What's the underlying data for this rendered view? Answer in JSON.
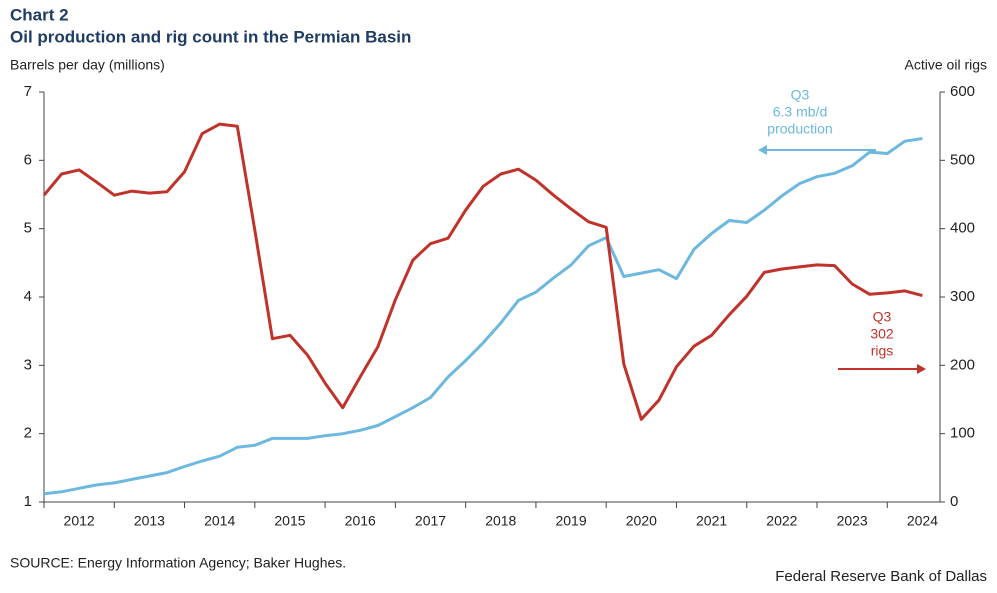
{
  "chart_data": {
    "type": "line",
    "title": "Chart 2",
    "subtitle": "Oil production and rig count in the Permian Basin",
    "ylabel": "Barrels per day (millions)",
    "y2label": "Active oil rigs",
    "source": "SOURCE: Energy Information Agency; Baker Hughes.",
    "credit": "Federal Reserve Bank of Dallas",
    "x": [
      2012,
      2012.25,
      2012.5,
      2012.75,
      2013,
      2013.25,
      2013.5,
      2013.75,
      2014,
      2014.25,
      2014.5,
      2014.75,
      2015,
      2015.25,
      2015.5,
      2015.75,
      2016,
      2016.25,
      2016.5,
      2016.75,
      2017,
      2017.25,
      2017.5,
      2017.75,
      2018,
      2018.25,
      2018.5,
      2018.75,
      2019,
      2019.25,
      2019.5,
      2019.75,
      2020,
      2020.25,
      2020.5,
      2020.75,
      2021,
      2021.25,
      2021.5,
      2021.75,
      2022,
      2022.25,
      2022.5,
      2022.75,
      2023,
      2023.25,
      2023.5,
      2023.75,
      2024,
      2024.25,
      2024.5
    ],
    "xlim": [
      2012,
      2024.75
    ],
    "xticks": [
      2012,
      2013,
      2014,
      2015,
      2016,
      2017,
      2018,
      2019,
      2020,
      2021,
      2022,
      2023,
      2024
    ],
    "ylim": [
      1,
      7
    ],
    "yticks": [
      1,
      2,
      3,
      4,
      5,
      6,
      7
    ],
    "y2lim": [
      0,
      600
    ],
    "y2ticks": [
      0,
      100,
      200,
      300,
      400,
      500,
      600
    ],
    "series": [
      {
        "name": "Oil production",
        "color": "#6cb8de",
        "values": [
          1.12,
          1.15,
          1.2,
          1.25,
          1.28,
          1.33,
          1.38,
          1.43,
          1.52,
          1.6,
          1.67,
          1.8,
          1.83,
          1.93,
          1.93,
          1.93,
          1.97,
          2.0,
          2.05,
          2.12,
          2.25,
          2.38,
          2.53,
          2.83,
          3.07,
          3.33,
          3.62,
          3.95,
          4.07,
          4.28,
          4.47,
          4.75,
          4.87,
          4.3,
          4.35,
          4.4,
          4.27,
          4.7,
          4.93,
          5.12,
          5.09,
          5.27,
          5.48,
          5.66,
          5.76,
          5.81,
          5.92,
          6.12,
          6.1,
          6.28,
          6.32
        ]
      },
      {
        "name": "Rig count",
        "color": "#c0332b",
        "axis": "y2",
        "values": [
          449,
          480,
          486,
          468,
          449,
          455,
          452,
          454,
          483,
          539,
          553,
          550,
          398,
          239,
          244,
          215,
          174,
          138,
          183,
          227,
          296,
          354,
          378,
          386,
          427,
          462,
          480,
          487,
          471,
          449,
          429,
          410,
          402,
          202,
          121,
          149,
          198,
          228,
          244,
          274,
          301,
          336,
          341,
          344,
          347,
          346,
          319,
          304,
          306,
          309,
          302
        ]
      }
    ],
    "annotations": [
      {
        "lines": [
          "Q3",
          "6.3 mb/d",
          "production"
        ],
        "series": 0
      },
      {
        "lines": [
          "Q3",
          "302",
          "rigs"
        ],
        "series": 1
      }
    ]
  }
}
